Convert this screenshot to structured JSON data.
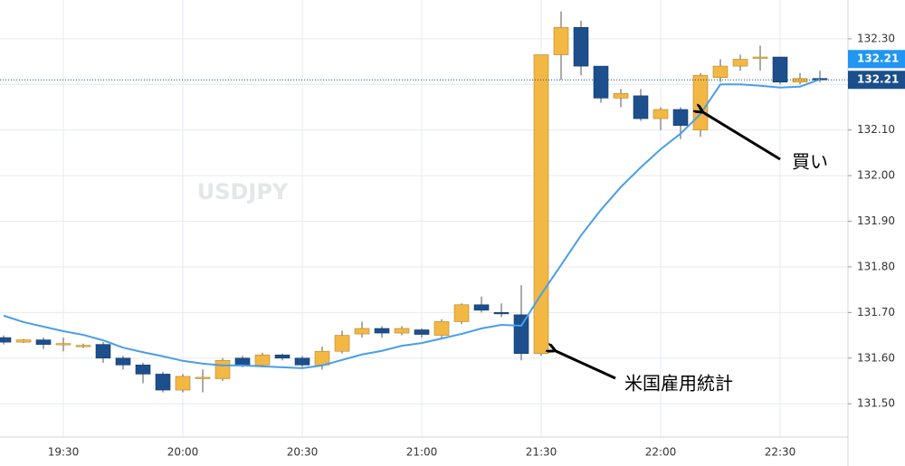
{
  "chart_data": {
    "type": "candlestick",
    "watermark": "USDJPY",
    "categories": [
      null,
      null,
      null,
      "19:30",
      null,
      null,
      null,
      null,
      null,
      "20:00",
      null,
      null,
      null,
      null,
      null,
      "20:30",
      null,
      null,
      null,
      null,
      null,
      "21:00",
      null,
      null,
      null,
      null,
      null,
      "21:30",
      null,
      null,
      null,
      null,
      null,
      "22:00",
      null,
      null,
      null,
      null,
      null,
      "22:30",
      null,
      null
    ],
    "open": [
      131.645,
      131.635,
      131.64,
      131.63,
      131.625,
      131.63,
      131.6,
      131.585,
      131.565,
      131.53,
      131.557,
      131.555,
      131.6,
      131.585,
      131.607,
      131.6,
      131.585,
      131.615,
      131.653,
      131.665,
      131.655,
      131.662,
      131.65,
      131.68,
      131.717,
      131.7,
      131.695,
      131.61,
      132.265,
      132.325,
      132.24,
      132.17,
      132.175,
      132.125,
      132.145,
      132.1,
      132.215,
      132.24,
      132.258,
      132.26,
      132.205,
      132.213
    ],
    "high": [
      131.65,
      131.642,
      131.645,
      131.645,
      131.632,
      131.635,
      131.605,
      131.59,
      131.57,
      131.565,
      131.575,
      131.6,
      131.605,
      131.612,
      131.61,
      131.605,
      131.625,
      131.66,
      131.68,
      131.67,
      131.67,
      131.665,
      131.685,
      131.72,
      131.735,
      131.72,
      131.76,
      132.265,
      132.36,
      132.34,
      132.24,
      132.19,
      132.19,
      132.15,
      132.15,
      132.225,
      132.255,
      132.265,
      132.285,
      132.26,
      132.225,
      132.23
    ],
    "low": [
      131.63,
      131.633,
      131.62,
      131.615,
      131.622,
      131.59,
      131.575,
      131.545,
      131.525,
      131.525,
      131.525,
      131.55,
      131.58,
      131.58,
      131.595,
      131.58,
      131.575,
      131.61,
      131.645,
      131.645,
      131.65,
      131.645,
      131.645,
      131.675,
      131.7,
      131.69,
      131.595,
      131.605,
      132.21,
      132.22,
      132.16,
      132.15,
      132.12,
      132.1,
      132.08,
      132.085,
      132.205,
      132.23,
      132.23,
      132.2,
      132.2,
      132.205
    ],
    "close": [
      131.635,
      131.64,
      131.63,
      131.632,
      131.628,
      131.6,
      131.585,
      131.565,
      131.53,
      131.56,
      131.558,
      131.595,
      131.585,
      131.607,
      131.6,
      131.585,
      131.615,
      131.65,
      131.665,
      131.655,
      131.665,
      131.652,
      131.68,
      131.717,
      131.705,
      131.698,
      131.61,
      132.265,
      132.325,
      132.24,
      132.17,
      132.18,
      132.125,
      132.145,
      132.11,
      132.22,
      132.24,
      132.255,
      132.26,
      132.205,
      132.213,
      132.21
    ],
    "up_color": "#f2b843",
    "down_color": "#1c4f8c",
    "moving_average": {
      "color": "#4a9ee8",
      "values": [
        131.693,
        131.679,
        131.669,
        131.659,
        131.651,
        131.639,
        131.623,
        131.613,
        131.604,
        131.594,
        131.588,
        131.584,
        131.584,
        131.582,
        131.58,
        131.578,
        131.584,
        131.596,
        131.608,
        131.616,
        131.627,
        131.633,
        131.643,
        131.653,
        131.665,
        131.673,
        131.671,
        131.74,
        131.804,
        131.869,
        131.925,
        131.975,
        132.018,
        132.058,
        132.092,
        132.135,
        132.2,
        132.2,
        132.197,
        132.193,
        132.195,
        132.211
      ]
    },
    "ylim": [
      131.427,
      132.385
    ],
    "yticks": [
      {
        "value": 131.5,
        "label": "131.50"
      },
      {
        "value": 131.6,
        "label": "131.60"
      },
      {
        "value": 131.7,
        "label": "131.70"
      },
      {
        "value": 131.8,
        "label": "131.80"
      },
      {
        "value": 131.9,
        "label": "131.90"
      },
      {
        "value": 132.0,
        "label": "132.00"
      },
      {
        "value": 132.1,
        "label": "132.10"
      },
      {
        "value": 132.2,
        "label": "132.20"
      },
      {
        "value": 132.3,
        "label": "132.30"
      }
    ],
    "grid": true,
    "price_labels": [
      {
        "value": 132.21,
        "label": "132.21",
        "color": "#2196f3"
      },
      {
        "value": 132.21,
        "label": "132.21",
        "color": "#1a4f8b"
      }
    ],
    "annotations": [
      "買い",
      "米国雇用統計"
    ]
  }
}
